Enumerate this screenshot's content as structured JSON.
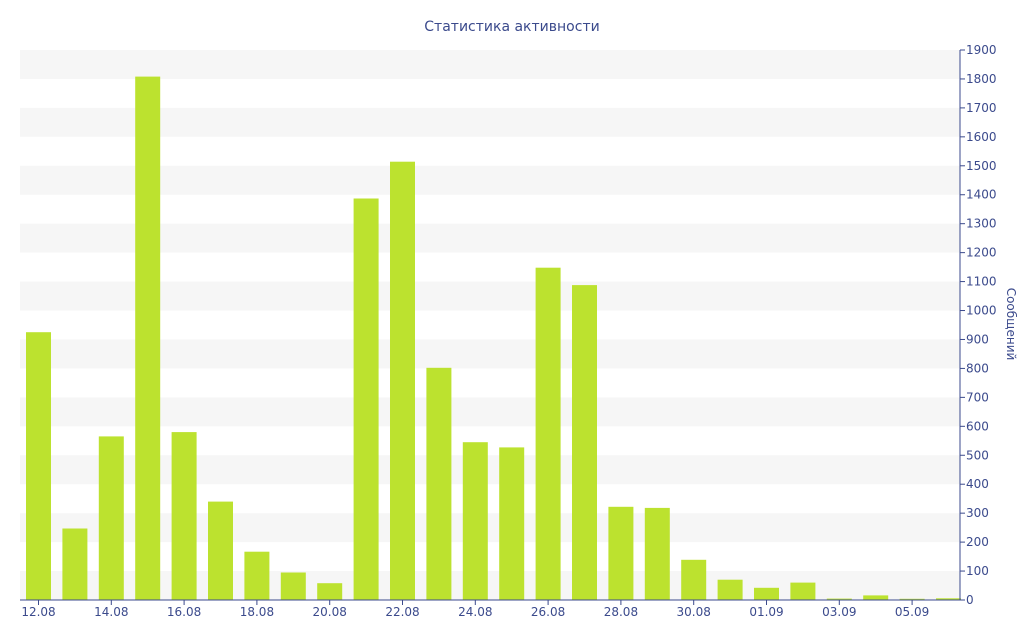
{
  "chart_data": {
    "type": "bar",
    "title": "Статистика активности",
    "ylabel": "Сообщений",
    "xlabel": "",
    "ylim": [
      0,
      1900
    ],
    "y_ticks": [
      0,
      100,
      200,
      300,
      400,
      500,
      600,
      700,
      800,
      900,
      1000,
      1100,
      1200,
      1300,
      1400,
      1500,
      1600,
      1700,
      1800,
      1900
    ],
    "y_axis_position": "right",
    "grid": "alternating horizontal bands",
    "bar_color": "#bce22f",
    "band_color": "#f6f6f6",
    "text_color": "#3b4a8c",
    "categories": [
      "12.08",
      "13.08",
      "14.08",
      "15.08",
      "16.08",
      "17.08",
      "18.08",
      "19.08",
      "20.08",
      "21.08",
      "22.08",
      "23.08",
      "24.08",
      "25.08",
      "26.08",
      "27.08",
      "28.08",
      "29.08",
      "30.08",
      "31.08",
      "01.09",
      "02.09",
      "03.09",
      "04.09",
      "05.09",
      "06.09"
    ],
    "x_tick_labels": [
      "12.08",
      "14.08",
      "16.08",
      "18.08",
      "20.08",
      "22.08",
      "24.08",
      "26.08",
      "28.08",
      "30.08",
      "01.09",
      "03.09",
      "05.09"
    ],
    "values": [
      925,
      247,
      565,
      1808,
      580,
      340,
      167,
      95,
      58,
      1387,
      1514,
      802,
      545,
      527,
      1148,
      1088,
      322,
      318,
      139,
      70,
      42,
      60,
      5,
      16,
      4,
      6
    ]
  }
}
